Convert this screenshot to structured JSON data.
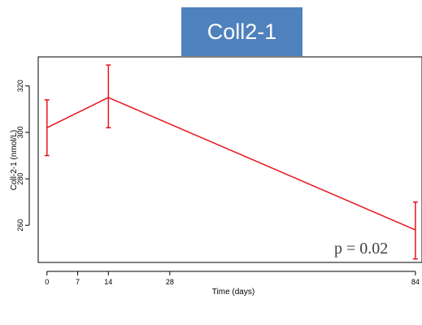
{
  "title": "Coll2-1",
  "annotation": "p = 0.02",
  "colors": {
    "title_bg": "#4f81bd",
    "series": "#e8141c",
    "axis": "#000000"
  },
  "chart_data": {
    "type": "line",
    "title": "Coll2-1",
    "xlabel": "Time (days)",
    "ylabel": "Coll-2-1 (nmol/L)",
    "x": [
      0,
      14,
      84
    ],
    "x_ticks": [
      0,
      7,
      14,
      28,
      84
    ],
    "x_tick_labels": [
      "0",
      "7",
      "14",
      "28",
      "84"
    ],
    "y_ticks": [
      260,
      280,
      300,
      320
    ],
    "y_tick_labels": [
      "260",
      "280",
      "300",
      "320"
    ],
    "xlim": [
      -2,
      85.5
    ],
    "ylim": [
      244,
      332.5
    ],
    "series": [
      {
        "values": [
          302,
          315,
          258
        ],
        "error_low": [
          290,
          302,
          245.5
        ],
        "error_high": [
          314,
          329,
          270
        ],
        "color": "#e8141c"
      }
    ],
    "annotations": [
      "p = 0.02"
    ],
    "grid": false,
    "legend": "none"
  }
}
